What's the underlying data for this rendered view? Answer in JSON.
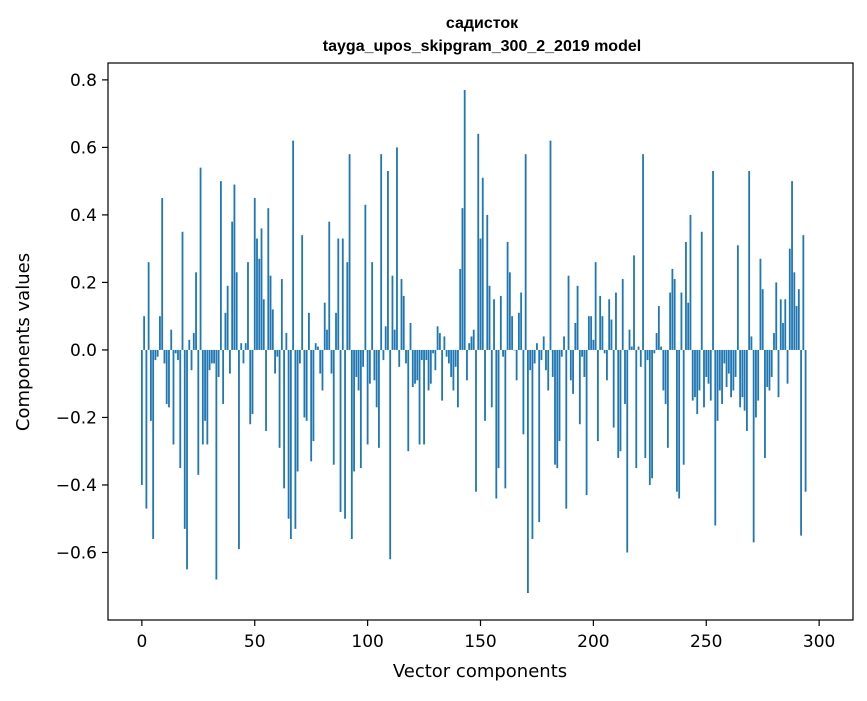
{
  "chart_data": {
    "type": "bar",
    "title": "садисток",
    "subtitle": "tayga_upos_skipgram_300_2_2019 model",
    "xlabel": "Vector components",
    "ylabel": "Components values",
    "xlim": [
      -15,
      315
    ],
    "ylim": [
      -0.8,
      0.85
    ],
    "xticks": [
      0,
      50,
      100,
      150,
      200,
      250,
      300
    ],
    "xtick_labels": [
      "0",
      "50",
      "100",
      "150",
      "200",
      "250",
      "300"
    ],
    "yticks": [
      -0.6,
      -0.4,
      -0.2,
      0.0,
      0.2,
      0.4,
      0.6,
      0.8
    ],
    "ytick_labels": [
      "−0.6",
      "−0.4",
      "−0.2",
      "0.0",
      "0.2",
      "0.4",
      "0.6",
      "0.8"
    ],
    "grid": false,
    "legend": "none",
    "bar_color": "#1f77b4",
    "values": [
      -0.4,
      0.1,
      -0.47,
      0.26,
      -0.21,
      -0.56,
      -0.03,
      -0.02,
      0.1,
      0.45,
      -0.04,
      -0.16,
      -0.17,
      0.06,
      -0.28,
      -0.01,
      -0.03,
      -0.35,
      0.35,
      -0.53,
      -0.65,
      0.03,
      -0.06,
      0.05,
      0.23,
      -0.37,
      0.54,
      -0.28,
      -0.21,
      -0.28,
      -0.06,
      -0.04,
      -0.04,
      -0.68,
      -0.08,
      0.5,
      -0.16,
      0.11,
      0.19,
      -0.07,
      0.38,
      0.49,
      0.23,
      -0.59,
      0.02,
      -0.04,
      0.02,
      0.26,
      -0.22,
      -0.19,
      0.45,
      0.33,
      0.27,
      0.36,
      0.15,
      -0.24,
      0.42,
      0.22,
      0.12,
      -0.07,
      -0.02,
      -0.29,
      0.21,
      -0.41,
      0.05,
      -0.5,
      -0.56,
      0.62,
      -0.53,
      -0.36,
      -0.04,
      0.34,
      -0.2,
      -0.21,
      0.11,
      -0.33,
      -0.27,
      0.02,
      0.01,
      -0.07,
      -0.12,
      0.14,
      0.06,
      0.38,
      -0.07,
      -0.34,
      0.11,
      0.33,
      -0.48,
      0.33,
      -0.5,
      0.26,
      0.58,
      -0.56,
      -0.36,
      -0.08,
      -0.12,
      -0.35,
      -0.05,
      0.43,
      -0.28,
      -0.1,
      0.26,
      -0.09,
      -0.17,
      -0.29,
      0.58,
      -0.03,
      0.07,
      0.53,
      -0.62,
      0.22,
      0.06,
      0.6,
      -0.05,
      0.21,
      0.16,
      -0.04,
      -0.3,
      0.08,
      -0.11,
      -0.1,
      -0.09,
      -0.28,
      -0.03,
      -0.28,
      -0.03,
      -0.12,
      -0.1,
      -0.01,
      -0.06,
      0.07,
      0.05,
      -0.15,
      0.04,
      -0.02,
      -0.04,
      -0.08,
      -0.12,
      -0.05,
      -0.17,
      0.24,
      0.42,
      0.77,
      -0.09,
      0.02,
      0.04,
      0.06,
      -0.42,
      0.64,
      0.33,
      0.51,
      -0.21,
      0.4,
      0.19,
      -0.17,
      0.15,
      -0.44,
      -0.35,
      0.16,
      -0.02,
      -0.41,
      0.32,
      0.23,
      0.1,
      0.0,
      -0.09,
      0.11,
      0.17,
      -0.25,
      0.58,
      -0.72,
      -0.06,
      -0.56,
      -0.04,
      0.02,
      -0.51,
      -0.03,
      0.04,
      -0.06,
      -0.12,
      0.62,
      -0.08,
      -0.34,
      -0.35,
      -0.27,
      -0.02,
      0.04,
      -0.47,
      0.22,
      -0.09,
      -0.13,
      0.08,
      0.19,
      -0.22,
      -0.02,
      -0.08,
      -0.43,
      0.1,
      0.1,
      0.03,
      0.26,
      -0.27,
      0.16,
      0.1,
      -0.01,
      -0.09,
      0.15,
      0.09,
      -0.23,
      0.17,
      -0.32,
      -0.3,
      0.21,
      -0.16,
      -0.6,
      0.06,
      0.01,
      0.28,
      -0.35,
      0.01,
      -0.05,
      0.58,
      -0.32,
      -0.03,
      -0.4,
      -0.38,
      -0.01,
      0.05,
      0.13,
      0.01,
      -0.12,
      -0.16,
      -0.29,
      0.17,
      0.24,
      0.21,
      -0.42,
      -0.44,
      0.17,
      -0.34,
      0.32,
      0.14,
      0.4,
      -0.15,
      -0.14,
      -0.19,
      -0.12,
      0.35,
      -0.17,
      -0.08,
      -0.1,
      -0.15,
      0.53,
      -0.52,
      -0.21,
      -0.12,
      -0.16,
      -0.04,
      -0.11,
      -0.07,
      -0.14,
      -0.12,
      -0.08,
      0.31,
      -0.17,
      -0.14,
      -0.18,
      -0.24,
      0.53,
      0.04,
      -0.57,
      -0.2,
      -0.15,
      0.27,
      0.18,
      -0.32,
      -0.11,
      -0.12,
      -0.08,
      0.05,
      0.2,
      -0.14,
      0.15,
      0.08,
      0.15,
      -0.1,
      0.3,
      0.5,
      0.23,
      0.13,
      0.18,
      -0.55,
      0.34,
      -0.42
    ]
  }
}
